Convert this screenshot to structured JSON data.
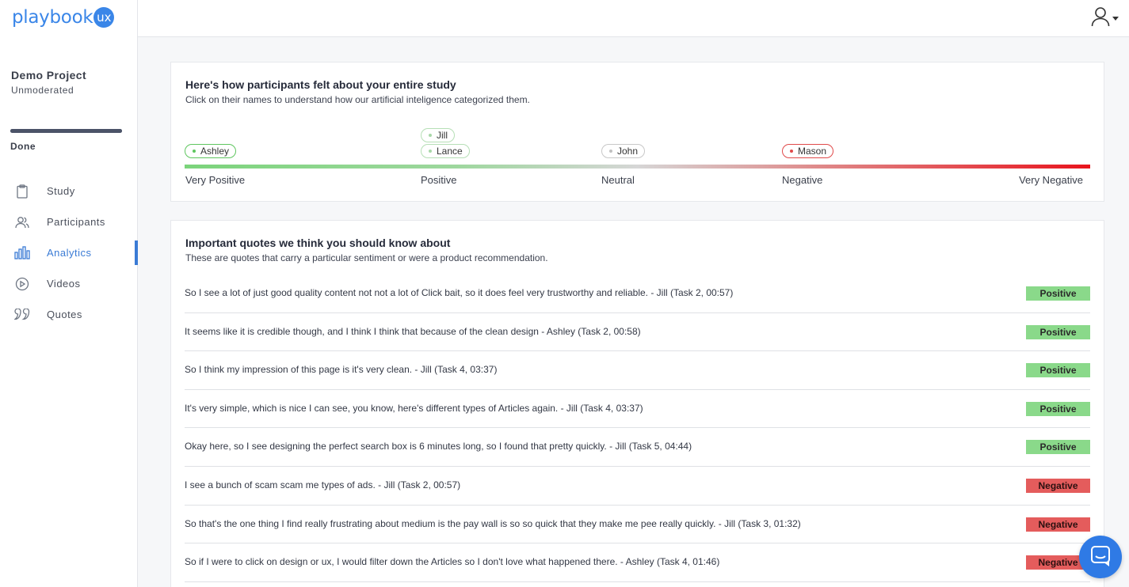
{
  "brand": {
    "name": "playbook",
    "badge": "ux",
    "color": "#3a86e8"
  },
  "project": {
    "name": "Demo Project",
    "type": "Unmoderated",
    "status": "Done",
    "progress": 1.0
  },
  "nav": [
    {
      "label": "Study",
      "icon": "clipboard-icon",
      "active": false
    },
    {
      "label": "Participants",
      "icon": "users-icon",
      "active": false
    },
    {
      "label": "Analytics",
      "icon": "bar-chart-icon",
      "active": true
    },
    {
      "label": "Videos",
      "icon": "play-circle-icon",
      "active": false
    },
    {
      "label": "Quotes",
      "icon": "quote-icon",
      "active": false
    }
  ],
  "sentiment": {
    "title": "Here's how participants felt about your entire study",
    "subtitle": "Click on their names to understand how our artificial inteligence categorized them.",
    "scale": [
      "Very Positive",
      "Positive",
      "Neutral",
      "Negative",
      "Very Negative"
    ],
    "participants": [
      {
        "name": "Ashley",
        "sentiment": "Very Positive"
      },
      {
        "name": "Jill",
        "sentiment": "Positive"
      },
      {
        "name": "Lance",
        "sentiment": "Positive"
      },
      {
        "name": "John",
        "sentiment": "Neutral"
      },
      {
        "name": "Mason",
        "sentiment": "Negative"
      }
    ]
  },
  "quotes": {
    "title": "Important quotes we think you should know about",
    "subtitle": "These are quotes that carry a particular sentiment or were a product recommendation.",
    "items": [
      {
        "text": "So I see a lot of just good quality content not not a lot of Click bait, so it does feel very trustworthy and reliable. - Jill (Task 2, 00:57)",
        "sentiment": "Positive"
      },
      {
        "text": "It seems like it is credible though, and I think I think that because of the clean design - Ashley (Task 2, 00:58)",
        "sentiment": "Positive"
      },
      {
        "text": "So I think my impression of this page is it's very clean. - Jill (Task 4, 03:37)",
        "sentiment": "Positive"
      },
      {
        "text": "It's very simple, which is nice I can see, you know, here's different types of Articles again. - Jill (Task 4, 03:37)",
        "sentiment": "Positive"
      },
      {
        "text": "Okay here, so I see designing the perfect search box is 6 minutes long, so I found that pretty quickly. - Jill (Task 5, 04:44)",
        "sentiment": "Positive"
      },
      {
        "text": "I see a bunch of scam scam me types of ads. - Jill (Task 2, 00:57)",
        "sentiment": "Negative"
      },
      {
        "text": "So that's the one thing I find really frustrating about medium is the pay wall is so so quick that they make me pee really quickly. - Jill (Task 3, 01:32)",
        "sentiment": "Negative"
      },
      {
        "text": "So if I were to click on design or ux, I would filter down the Articles so I don't love what happened there. - Ashley (Task 4, 01:46)",
        "sentiment": "Negative"
      }
    ]
  },
  "colors": {
    "accent": "#3a7bd5",
    "positive": "#8ad98a",
    "negative": "#e45c5c"
  }
}
